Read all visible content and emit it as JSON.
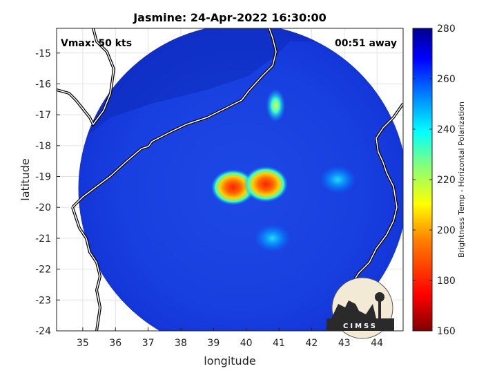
{
  "chart_data": {
    "type": "heatmap",
    "title": "Jasmine: 24-Apr-2022 16:30:00",
    "xlabel": "longitude",
    "ylabel": "latitude",
    "xlim": [
      34.2,
      44.8
    ],
    "ylim": [
      -24,
      -14.2
    ],
    "xticks": [
      35,
      36,
      37,
      38,
      39,
      40,
      41,
      42,
      43,
      44
    ],
    "yticks": [
      -15,
      -16,
      -17,
      -18,
      -19,
      -20,
      -21,
      -22,
      -23,
      -24
    ],
    "grid": true,
    "annotations": {
      "vmax": "Vmax: 50 kts",
      "away": "00:51 away"
    },
    "colorbar": {
      "label": "Brightness Temp - Horizontal Polarization",
      "range": [
        160,
        280
      ],
      "ticks": [
        280,
        260,
        240,
        220,
        200,
        180,
        160
      ],
      "colormap": [
        "#7f0000",
        "#ff0000",
        "#ff8000",
        "#ffff00",
        "#80ff80",
        "#00ffff",
        "#0080ff",
        "#0000ff",
        "#00008f"
      ]
    },
    "swath": {
      "center": [
        39.9,
        -19.4
      ],
      "radius_deg": 5.3,
      "background_temp": 265
    },
    "features": [
      {
        "label": "core-west",
        "lon": 39.6,
        "lat": -19.35,
        "temp": 185
      },
      {
        "label": "core-east",
        "lon": 40.6,
        "lat": -19.25,
        "temp": 195
      },
      {
        "label": "band-north",
        "lon": 40.9,
        "lat": -16.7,
        "temp": 215
      },
      {
        "label": "band-east",
        "lon": 42.8,
        "lat": -19.1,
        "temp": 235
      },
      {
        "label": "band-south",
        "lon": 40.8,
        "lat": -21.0,
        "temp": 240
      }
    ]
  },
  "logo": {
    "text": "CIMSS"
  }
}
